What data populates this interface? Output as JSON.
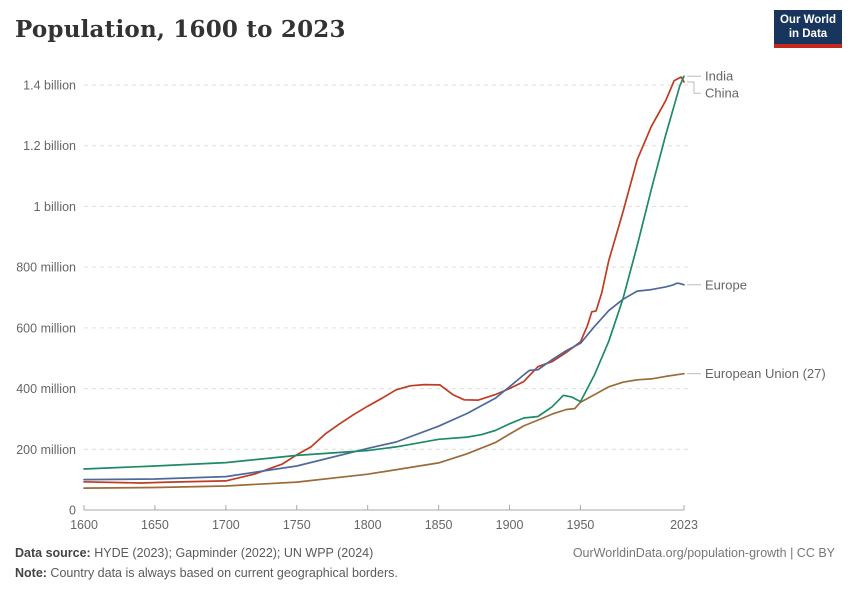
{
  "header": {
    "title": "Population, 1600 to 2023",
    "logo": {
      "line1": "Our World",
      "line2": "in Data"
    }
  },
  "chart_data": {
    "type": "line",
    "title": "Population, 1600 to 2023",
    "unit": "people (millions)",
    "grid": "horizontal dashed",
    "legend_position": "labels at line ends, right side",
    "x_axis": {
      "range": [
        1600,
        2023
      ],
      "ticks": [
        1600,
        1650,
        1700,
        1750,
        1800,
        1850,
        1900,
        1950,
        2023
      ]
    },
    "y_axis": {
      "range_millions": [
        0,
        1400
      ],
      "ticks": [
        {
          "value": 0,
          "label": "0"
        },
        {
          "value": 200,
          "label": "200 million"
        },
        {
          "value": 400,
          "label": "400 million"
        },
        {
          "value": 600,
          "label": "600 million"
        },
        {
          "value": 800,
          "label": "800 million"
        },
        {
          "value": 1000,
          "label": "1 billion"
        },
        {
          "value": 1200,
          "label": "1.2 billion"
        },
        {
          "value": 1400,
          "label": "1.4 billion"
        }
      ]
    },
    "series": [
      {
        "name": "India",
        "color": "#1e8a68",
        "points": [
          [
            1600,
            135
          ],
          [
            1650,
            145
          ],
          [
            1700,
            156
          ],
          [
            1750,
            180
          ],
          [
            1800,
            196
          ],
          [
            1820,
            208
          ],
          [
            1850,
            233
          ],
          [
            1870,
            240
          ],
          [
            1880,
            248
          ],
          [
            1890,
            262
          ],
          [
            1900,
            284
          ],
          [
            1910,
            303
          ],
          [
            1920,
            308
          ],
          [
            1930,
            340
          ],
          [
            1938,
            378
          ],
          [
            1944,
            372
          ],
          [
            1950,
            357
          ],
          [
            1960,
            446
          ],
          [
            1970,
            556
          ],
          [
            1980,
            696
          ],
          [
            1990,
            871
          ],
          [
            2000,
            1057
          ],
          [
            2010,
            1234
          ],
          [
            2020,
            1396
          ],
          [
            2023,
            1429
          ]
        ]
      },
      {
        "name": "China",
        "color": "#bf3b21",
        "points": [
          [
            1600,
            93
          ],
          [
            1640,
            89
          ],
          [
            1660,
            92
          ],
          [
            1700,
            96
          ],
          [
            1720,
            118
          ],
          [
            1740,
            152
          ],
          [
            1750,
            182
          ],
          [
            1760,
            208
          ],
          [
            1770,
            250
          ],
          [
            1780,
            283
          ],
          [
            1790,
            314
          ],
          [
            1800,
            342
          ],
          [
            1810,
            368
          ],
          [
            1820,
            396
          ],
          [
            1830,
            409
          ],
          [
            1840,
            413
          ],
          [
            1851,
            412
          ],
          [
            1860,
            380
          ],
          [
            1868,
            363
          ],
          [
            1878,
            362
          ],
          [
            1890,
            380
          ],
          [
            1900,
            400
          ],
          [
            1910,
            423
          ],
          [
            1920,
            472
          ],
          [
            1930,
            489
          ],
          [
            1940,
            519
          ],
          [
            1950,
            554
          ],
          [
            1955,
            608
          ],
          [
            1958,
            653
          ],
          [
            1961,
            656
          ],
          [
            1965,
            715
          ],
          [
            1970,
            822
          ],
          [
            1980,
            982
          ],
          [
            1990,
            1154
          ],
          [
            2000,
            1264
          ],
          [
            2010,
            1348
          ],
          [
            2016,
            1414
          ],
          [
            2020,
            1424
          ],
          [
            2021,
            1426
          ],
          [
            2023,
            1410
          ]
        ]
      },
      {
        "name": "Europe",
        "color": "#4c6a9c",
        "points": [
          [
            1600,
            100
          ],
          [
            1650,
            102
          ],
          [
            1700,
            110
          ],
          [
            1750,
            145
          ],
          [
            1800,
            203
          ],
          [
            1820,
            224
          ],
          [
            1850,
            276
          ],
          [
            1870,
            318
          ],
          [
            1890,
            368
          ],
          [
            1900,
            406
          ],
          [
            1910,
            445
          ],
          [
            1914,
            460
          ],
          [
            1920,
            462
          ],
          [
            1930,
            495
          ],
          [
            1940,
            525
          ],
          [
            1950,
            549
          ],
          [
            1960,
            605
          ],
          [
            1970,
            657
          ],
          [
            1980,
            694
          ],
          [
            1990,
            721
          ],
          [
            2000,
            726
          ],
          [
            2010,
            735
          ],
          [
            2015,
            741
          ],
          [
            2018,
            747
          ],
          [
            2020,
            746
          ],
          [
            2023,
            742
          ]
        ]
      },
      {
        "name": "European Union (27)",
        "color": "#9c6b39",
        "points": [
          [
            1600,
            72
          ],
          [
            1650,
            74
          ],
          [
            1700,
            79
          ],
          [
            1750,
            92
          ],
          [
            1800,
            118
          ],
          [
            1850,
            155
          ],
          [
            1870,
            185
          ],
          [
            1890,
            222
          ],
          [
            1900,
            250
          ],
          [
            1910,
            277
          ],
          [
            1920,
            296
          ],
          [
            1930,
            316
          ],
          [
            1940,
            331
          ],
          [
            1946,
            334
          ],
          [
            1950,
            355
          ],
          [
            1960,
            380
          ],
          [
            1970,
            406
          ],
          [
            1980,
            421
          ],
          [
            1990,
            429
          ],
          [
            2000,
            432
          ],
          [
            2010,
            440
          ],
          [
            2020,
            447
          ],
          [
            2023,
            449
          ]
        ]
      }
    ]
  },
  "footer": {
    "source_label": "Data source:",
    "source_text": " HYDE (2023); Gapminder (2022); UN WPP (2024)",
    "note_label": "Note:",
    "note_text": " Country data is always based on current geographical borders.",
    "link": "OurWorldinData.org/population-growth | CC BY"
  }
}
